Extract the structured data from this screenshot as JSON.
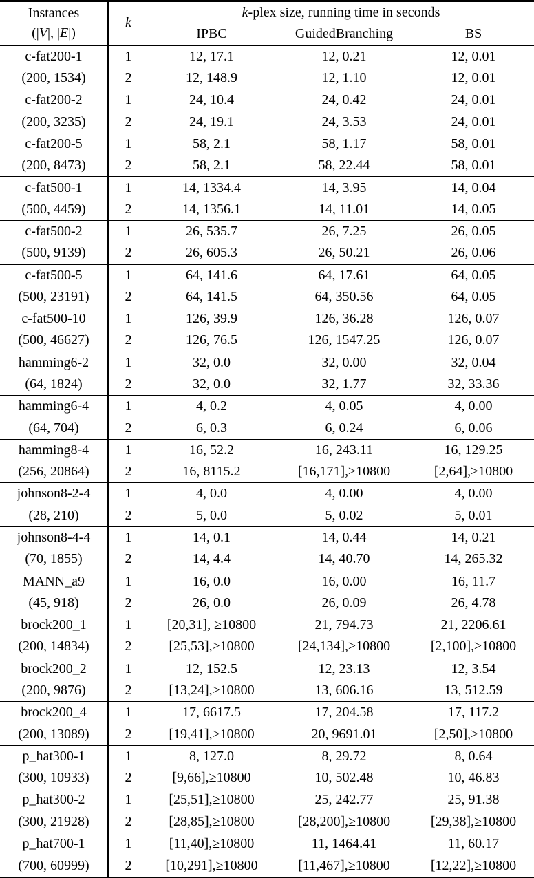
{
  "colors": {
    "text": "#000000",
    "background": "#ffffff",
    "rule": "#000000"
  },
  "table": {
    "header": {
      "instances_line1": "Instances",
      "instances_line2_parts": [
        "(|",
        "V",
        "|, |",
        "E",
        "|)"
      ],
      "k_label": "k",
      "group_title_italic": "k",
      "group_title_rest": "-plex size, running time in seconds",
      "algorithms": [
        "IPBC",
        "GuidedBranching",
        "BS"
      ]
    },
    "k_values": [
      "1",
      "2"
    ],
    "rows": [
      {
        "name": "c-fat200-1",
        "ve": "(200, 1534)",
        "k1": [
          "12, 17.1",
          "12, 0.21",
          "12, 0.01"
        ],
        "k2": [
          "12, 148.9",
          "12, 1.10",
          "12, 0.01"
        ]
      },
      {
        "name": "c-fat200-2",
        "ve": "(200, 3235)",
        "k1": [
          "24, 10.4",
          "24, 0.42",
          "24, 0.01"
        ],
        "k2": [
          "24, 19.1",
          "24, 3.53",
          "24, 0.01"
        ]
      },
      {
        "name": "c-fat200-5",
        "ve": "(200, 8473)",
        "k1": [
          "58, 2.1",
          "58, 1.17",
          "58, 0.01"
        ],
        "k2": [
          "58, 2.1",
          "58, 22.44",
          "58, 0.01"
        ]
      },
      {
        "name": "c-fat500-1",
        "ve": "(500, 4459)",
        "k1": [
          "14, 1334.4",
          "14, 3.95",
          "14, 0.04"
        ],
        "k2": [
          "14, 1356.1",
          "14, 11.01",
          "14, 0.05"
        ]
      },
      {
        "name": "c-fat500-2",
        "ve": "(500, 9139)",
        "k1": [
          "26, 535.7",
          "26, 7.25",
          "26, 0.05"
        ],
        "k2": [
          "26, 605.3",
          "26, 50.21",
          "26, 0.06"
        ]
      },
      {
        "name": "c-fat500-5",
        "ve": "(500, 23191)",
        "k1": [
          "64, 141.6",
          "64, 17.61",
          "64, 0.05"
        ],
        "k2": [
          "64, 141.5",
          "64, 350.56",
          "64, 0.05"
        ]
      },
      {
        "name": "c-fat500-10",
        "ve": "(500, 46627)",
        "k1": [
          "126, 39.9",
          "126, 36.28",
          "126, 0.07"
        ],
        "k2": [
          "126, 76.5",
          "126, 1547.25",
          "126, 0.07"
        ]
      },
      {
        "name": "hamming6-2",
        "ve": "(64, 1824)",
        "k1": [
          "32, 0.0",
          "32, 0.00",
          "32, 0.04"
        ],
        "k2": [
          "32, 0.0",
          "32, 1.77",
          "32, 33.36"
        ]
      },
      {
        "name": "hamming6-4",
        "ve": "(64, 704)",
        "k1": [
          "4, 0.2",
          "4, 0.05",
          "4, 0.00"
        ],
        "k2": [
          "6, 0.3",
          "6, 0.24",
          "6, 0.06"
        ]
      },
      {
        "name": "hamming8-4",
        "ve": "(256, 20864)",
        "k1": [
          "16, 52.2",
          "16, 243.11",
          "16, 129.25"
        ],
        "k2": [
          "16, 8115.2",
          "[16,171],≥10800",
          "[2,64],≥10800"
        ]
      },
      {
        "name": "johnson8-2-4",
        "ve": "(28, 210)",
        "k1": [
          "4, 0.0",
          "4, 0.00",
          "4, 0.00"
        ],
        "k2": [
          "5, 0.0",
          "5, 0.02",
          "5, 0.01"
        ]
      },
      {
        "name": "johnson8-4-4",
        "ve": "(70, 1855)",
        "k1": [
          "14, 0.1",
          "14, 0.44",
          "14, 0.21"
        ],
        "k2": [
          "14, 4.4",
          "14, 40.70",
          "14, 265.32"
        ]
      },
      {
        "name": "MANN_a9",
        "ve": "(45, 918)",
        "k1": [
          "16, 0.0",
          "16, 0.00",
          "16, 11.7"
        ],
        "k2": [
          "26, 0.0",
          "26, 0.09",
          "26, 4.78"
        ]
      },
      {
        "name": "brock200_1",
        "ve": "(200, 14834)",
        "k1": [
          "[20,31], ≥10800",
          "21, 794.73",
          "21, 2206.61"
        ],
        "k2": [
          "[25,53],≥10800",
          "[24,134],≥10800",
          "[2,100],≥10800"
        ]
      },
      {
        "name": "brock200_2",
        "ve": "(200, 9876)",
        "k1": [
          "12, 152.5",
          "12, 23.13",
          "12, 3.54"
        ],
        "k2": [
          "[13,24],≥10800",
          "13, 606.16",
          "13, 512.59"
        ]
      },
      {
        "name": "brock200_4",
        "ve": "(200, 13089)",
        "k1": [
          "17, 6617.5",
          "17, 204.58",
          "17, 117.2"
        ],
        "k2": [
          "[19,41],≥10800",
          "20, 9691.01",
          "[2,50],≥10800"
        ]
      },
      {
        "name": "p_hat300-1",
        "ve": "(300, 10933)",
        "k1": [
          "8, 127.0",
          "8, 29.72",
          "8, 0.64"
        ],
        "k2": [
          "[9,66],≥10800",
          "10, 502.48",
          "10, 46.83"
        ]
      },
      {
        "name": "p_hat300-2",
        "ve": "(300, 21928)",
        "k1": [
          "[25,51],≥10800",
          "25, 242.77",
          "25, 91.38"
        ],
        "k2": [
          "[28,85],≥10800",
          "[28,200],≥10800",
          "[29,38],≥10800"
        ]
      },
      {
        "name": "p_hat700-1",
        "ve": "(700, 60999)",
        "k1": [
          "[11,40],≥10800",
          "11, 1464.41",
          "11, 60.17"
        ],
        "k2": [
          "[10,291],≥10800",
          "[11,467],≥10800",
          "[12,22],≥10800"
        ]
      }
    ]
  }
}
